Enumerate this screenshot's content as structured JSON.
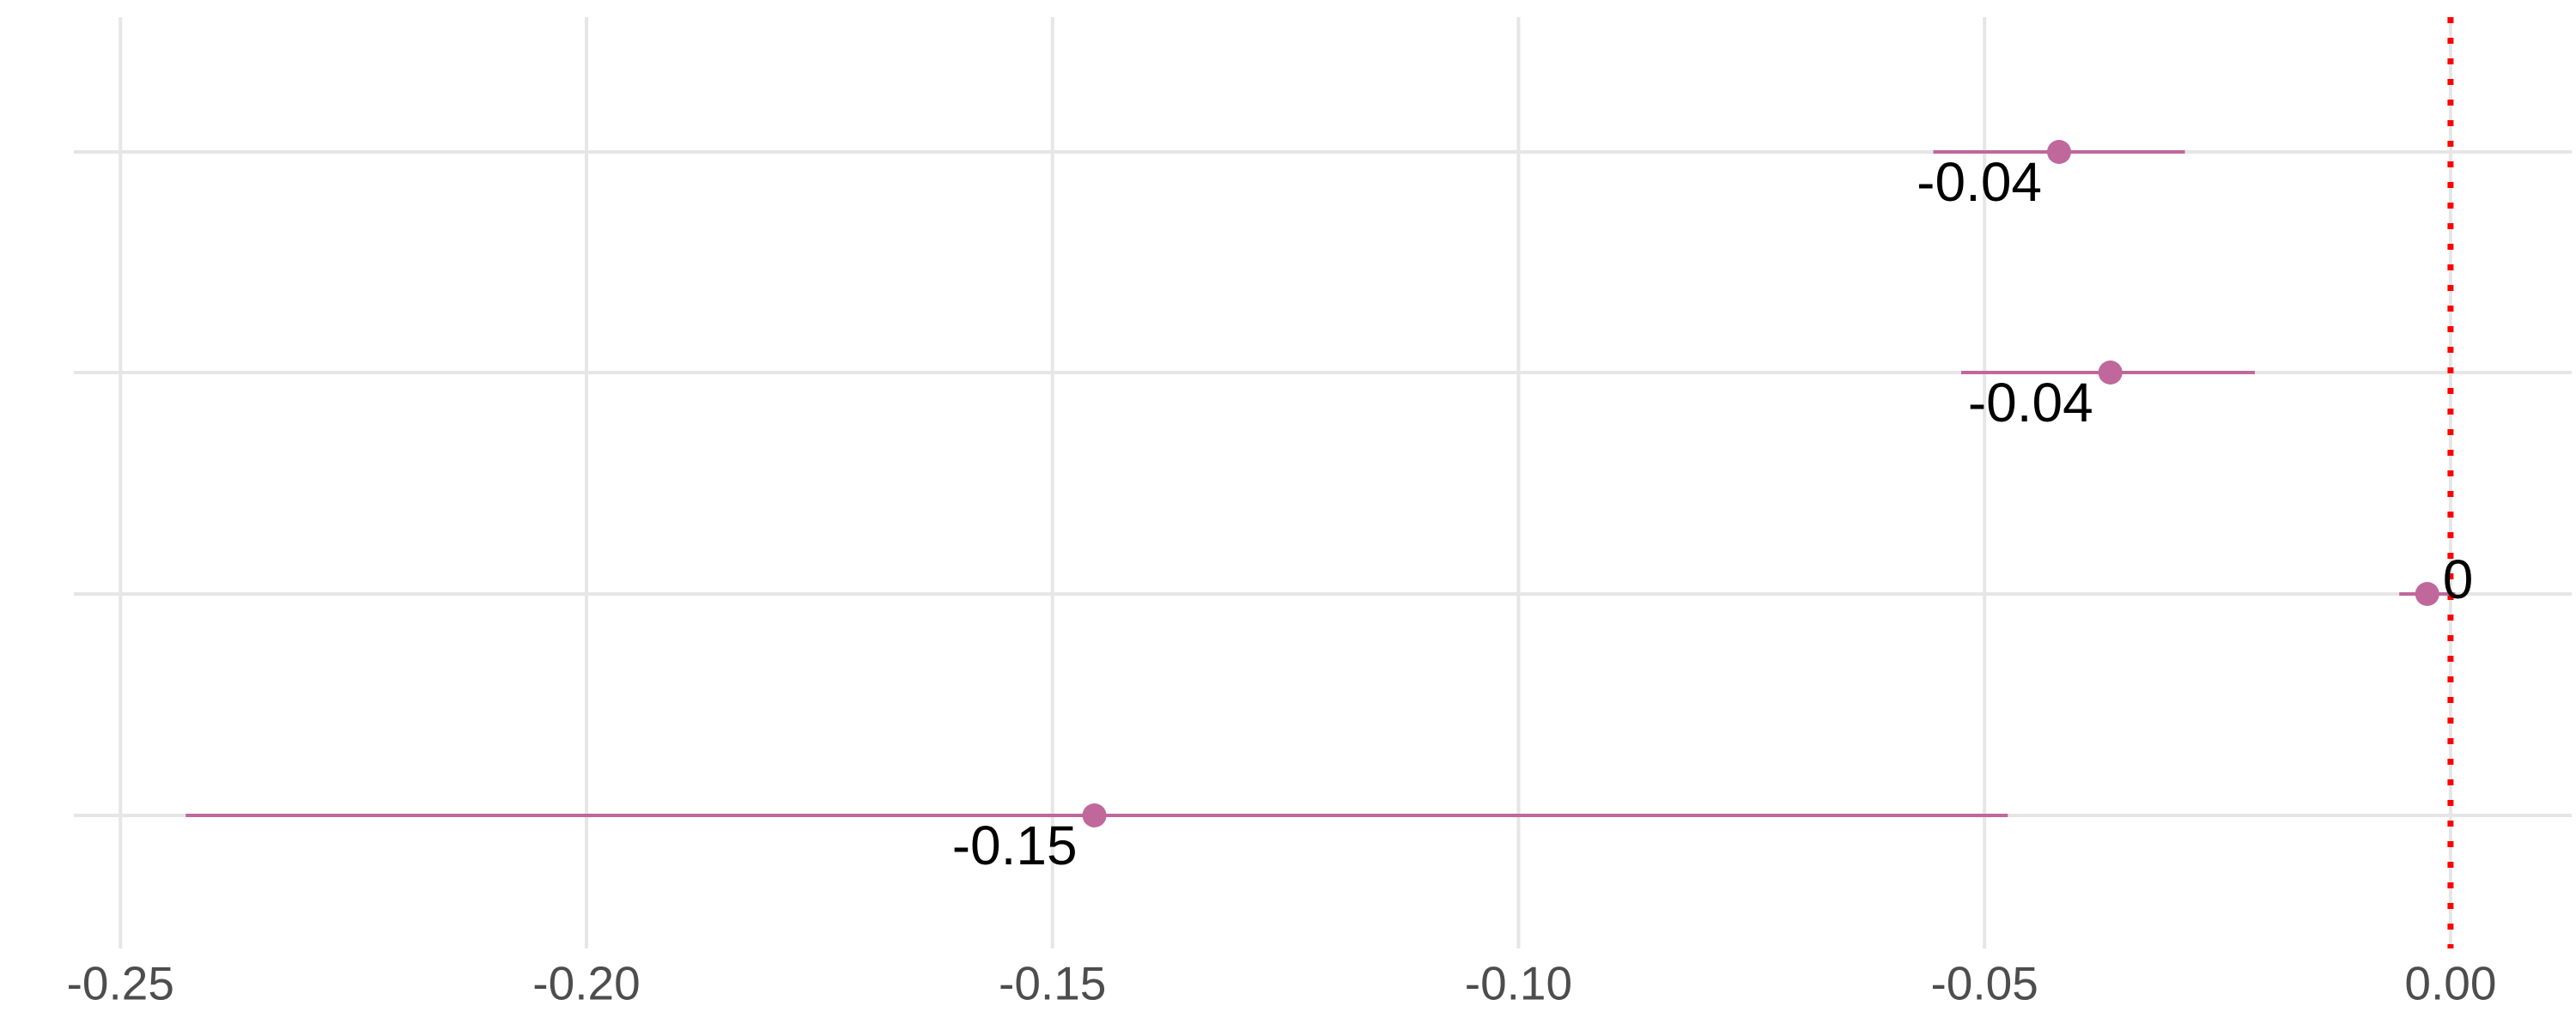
{
  "chart_data": {
    "type": "scatter",
    "subtype": "point-range",
    "title": "",
    "xlabel": "",
    "ylabel": "",
    "xlim": [
      -0.255,
      0.013
    ],
    "x_ticks": [
      -0.25,
      -0.2,
      -0.15,
      -0.1,
      -0.05,
      0.0
    ],
    "x_tick_labels": [
      "-0.25",
      "-0.20",
      "-0.15",
      "-0.10",
      "-0.05",
      "0.00"
    ],
    "grid": true,
    "legend": "none",
    "reference_line": {
      "x": 0.0,
      "style": "dotted",
      "color": "#ff0000"
    },
    "point_color": "#c0679b",
    "grid_color": "#e6e6e6",
    "points": [
      {
        "estimate": -0.042,
        "low": -0.0555,
        "high": -0.0285,
        "label": "-0.04"
      },
      {
        "estimate": -0.0365,
        "low": -0.0525,
        "high": -0.021,
        "label": "-0.04"
      },
      {
        "estimate": -0.0025,
        "low": -0.0055,
        "high": 0.0005,
        "label": "0"
      },
      {
        "estimate": -0.1455,
        "low": -0.243,
        "high": -0.0475,
        "label": "-0.15"
      }
    ]
  }
}
